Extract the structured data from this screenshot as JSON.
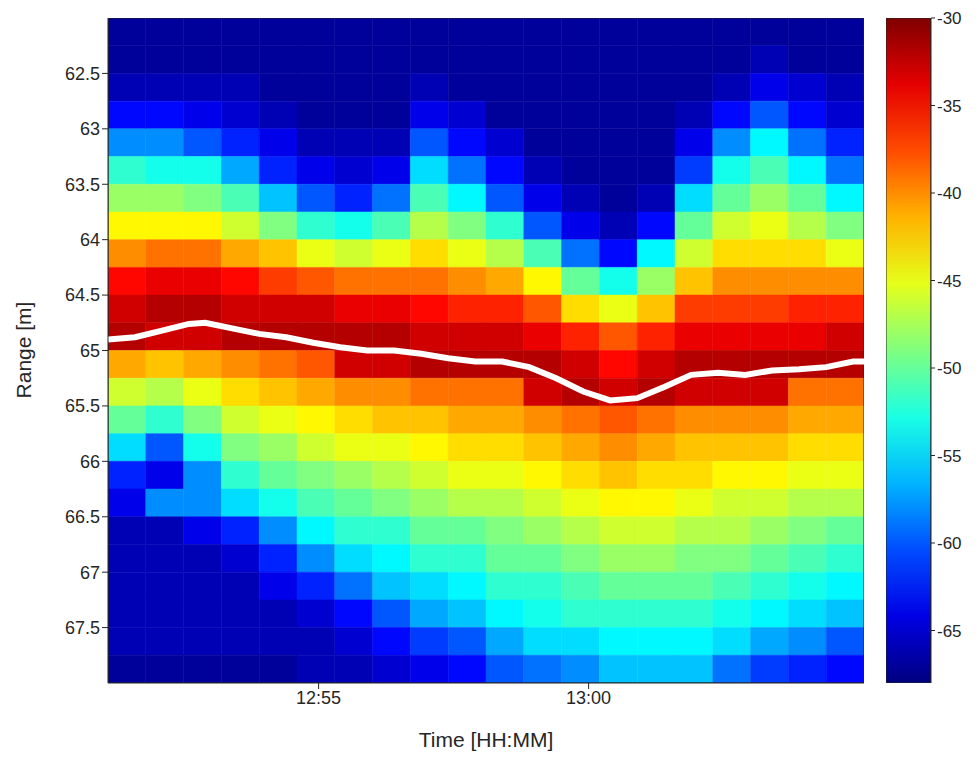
{
  "chart_data": {
    "type": "heatmap",
    "x_label": "Time [HH:MM]",
    "y_label": "Range [m]",
    "xlim": [
      51.1,
      65.1
    ],
    "xticks": [
      {
        "value": 55,
        "label": "12:55"
      },
      {
        "value": 60,
        "label": "13:00"
      }
    ],
    "ylim": [
      68,
      62
    ],
    "yticks": [
      62.5,
      63,
      63.5,
      64,
      64.5,
      65,
      65.5,
      66,
      66.5,
      67,
      67.5
    ],
    "colorbar": {
      "range": [
        -68,
        -30
      ],
      "ticks": [
        -30,
        -35,
        -40,
        -45,
        -50,
        -55,
        -60,
        -65
      ]
    },
    "cells": {
      "x": [
        51.45,
        52.15,
        52.85,
        53.55,
        54.25,
        54.95,
        55.65,
        56.35,
        57.05,
        57.75,
        58.45,
        59.15,
        59.85,
        60.55,
        61.25,
        61.95,
        62.65,
        63.35,
        64.05,
        64.75
      ],
      "y": [
        62.125,
        62.375,
        62.625,
        62.875,
        63.125,
        63.375,
        63.625,
        63.875,
        64.125,
        64.375,
        64.625,
        64.875,
        65.125,
        65.375,
        65.625,
        65.875,
        66.125,
        66.375,
        66.625,
        66.875,
        67.125,
        67.375,
        67.625,
        67.875
      ],
      "values": [
        [
          -67,
          -67,
          -66,
          -63,
          -58,
          -52,
          -48,
          -44,
          -40,
          -35,
          -33,
          -32,
          -41,
          -46,
          -50,
          -55,
          -62,
          -64,
          -66,
          -66,
          -66,
          -66,
          -66,
          -67
        ],
        [
          -67,
          -67,
          -66,
          -63,
          -58,
          -53,
          -48,
          -44,
          -39,
          -34,
          -32,
          -33,
          -42,
          -47,
          -52,
          -60,
          -64,
          -58,
          -66,
          -66,
          -66,
          -66,
          -66,
          -67
        ],
        [
          -67,
          -67,
          -66,
          -64,
          -60,
          -53,
          -49,
          -44,
          -39,
          -34,
          -32,
          -33,
          -41,
          -45,
          -49,
          -53,
          -58,
          -58,
          -64,
          -66,
          -66,
          -66,
          -66,
          -67
        ],
        [
          -67,
          -67,
          -66,
          -65,
          -62,
          -57,
          -51,
          -46,
          -41,
          -35,
          -33,
          -32,
          -40,
          -43,
          -46,
          -49,
          -52,
          -55,
          -62,
          -65,
          -66,
          -66,
          -66,
          -67
        ],
        [
          -67,
          -67,
          -67,
          -66,
          -64,
          -62,
          -56,
          -49,
          -42,
          -37,
          -33,
          -32,
          -39,
          -42,
          -45,
          -48,
          -50,
          -53,
          -58,
          -62,
          -64,
          -66,
          -66,
          -67
        ],
        [
          -67,
          -67,
          -67,
          -67,
          -66,
          -64,
          -60,
          -52,
          -45,
          -38,
          -33,
          -32,
          -38,
          -41,
          -44,
          -46,
          -49,
          -51,
          -54,
          -58,
          -62,
          -65,
          -66,
          -66
        ],
        [
          -67,
          -67,
          -67,
          -67,
          -66,
          -65,
          -62,
          -53,
          -46,
          -39,
          -34,
          -32,
          -33,
          -40,
          -43,
          -45,
          -48,
          -50,
          -52,
          -55,
          -59,
          -63,
          -65,
          -66
        ],
        [
          -67,
          -67,
          -67,
          -67,
          -66,
          -64,
          -59,
          -51,
          -45,
          -39,
          -34,
          -32,
          -33,
          -40,
          -42,
          -45,
          -47,
          -49,
          -52,
          -54,
          -56,
          -60,
          -63,
          -65
        ],
        [
          -67,
          -67,
          -66,
          -64,
          -60,
          -55,
          -51,
          -47,
          -43,
          -39,
          -35,
          -33,
          -32,
          -39,
          -42,
          -44,
          -46,
          -48,
          -50,
          -52,
          -55,
          -57,
          -61,
          -64
        ],
        [
          -67,
          -67,
          -67,
          -65,
          -63,
          -59,
          -54,
          -49,
          -45,
          -40,
          -36,
          -33,
          -32,
          -39,
          -41,
          -43,
          -45,
          -47,
          -50,
          -52,
          -54,
          -56,
          -60,
          -63
        ],
        [
          -67,
          -67,
          -67,
          -67,
          -65,
          -63,
          -60,
          -52,
          -47,
          -41,
          -36,
          -33,
          -32,
          -39,
          -41,
          -43,
          -45,
          -47,
          -49,
          -50,
          -52,
          -54,
          -57,
          -60
        ],
        [
          -67,
          -67,
          -67,
          -67,
          -67,
          -66,
          -64,
          -60,
          -51,
          -44,
          -38,
          -34,
          -32,
          -33,
          -40,
          -42,
          -44,
          -46,
          -48,
          -50,
          -52,
          -53,
          -55,
          -59
        ],
        [
          -67,
          -67,
          -67,
          -67,
          -67,
          -67,
          -66,
          -64,
          -59,
          -50,
          -43,
          -36,
          -33,
          -32,
          -39,
          -41,
          -43,
          -45,
          -47,
          -49,
          -51,
          -52,
          -55,
          -58
        ],
        [
          -67,
          -67,
          -67,
          -67,
          -67,
          -67,
          -67,
          -66,
          -63,
          -53,
          -45,
          -38,
          -35,
          -33,
          -38,
          -40,
          -42,
          -44,
          -46,
          -48,
          -50,
          -52,
          -54,
          -56
        ],
        [
          -67,
          -67,
          -67,
          -67,
          -67,
          -67,
          -66,
          -63,
          -54,
          -48,
          -42,
          -36,
          -33,
          -32,
          -39,
          -41,
          -43,
          -44,
          -46,
          -48,
          -50,
          -52,
          -54,
          -56
        ],
        [
          -67,
          -67,
          -67,
          -66,
          -64,
          -61,
          -55,
          -50,
          -46,
          -42,
          -37,
          -34,
          -32,
          -33,
          -40,
          -42,
          -43,
          -45,
          -47,
          -49,
          -50,
          -52,
          -54,
          -56
        ],
        [
          -67,
          -67,
          -66,
          -63,
          -58,
          -53,
          -50,
          -46,
          -43,
          -40,
          -37,
          -34,
          -32,
          -33,
          -40,
          -42,
          -44,
          -46,
          -47,
          -49,
          -51,
          -53,
          -55,
          -59
        ],
        [
          -67,
          -66,
          -64,
          -60,
          -54,
          -51,
          -48,
          -45,
          -43,
          -40,
          -37,
          -34,
          -32,
          -33,
          -40,
          -42,
          -44,
          -46,
          -48,
          -50,
          -52,
          -54,
          -57,
          -61
        ],
        [
          -67,
          -67,
          -65,
          -63,
          -59,
          -54,
          -50,
          -47,
          -43,
          -40,
          -36,
          -34,
          -32,
          -39,
          -41,
          -43,
          -45,
          -47,
          -49,
          -51,
          -53,
          -55,
          -58,
          -62
        ],
        [
          -67,
          -67,
          -66,
          -65,
          -62,
          -59,
          -54,
          -49,
          -45,
          -40,
          -36,
          -33,
          -32,
          -39,
          -41,
          -43,
          -45,
          -47,
          -50,
          -52,
          -54,
          -56,
          -60,
          -63
        ]
      ]
    },
    "series": [
      {
        "type": "line",
        "color": "#ffffff",
        "x": [
          51.1,
          51.6,
          52.1,
          52.6,
          52.9,
          53.4,
          53.9,
          54.4,
          54.9,
          55.4,
          55.9,
          56.4,
          56.9,
          57.4,
          57.9,
          58.4,
          58.9,
          59.4,
          59.9,
          60.4,
          60.9,
          61.4,
          61.9,
          62.4,
          62.9,
          63.4,
          63.9,
          64.4,
          64.9,
          65.1
        ],
        "values": [
          64.9,
          64.88,
          64.82,
          64.76,
          64.75,
          64.8,
          64.85,
          64.88,
          64.93,
          64.97,
          65.0,
          65.0,
          65.03,
          65.07,
          65.1,
          65.1,
          65.15,
          65.25,
          65.37,
          65.45,
          65.43,
          65.33,
          65.22,
          65.2,
          65.22,
          65.18,
          65.17,
          65.15,
          65.1,
          65.1
        ]
      }
    ]
  }
}
